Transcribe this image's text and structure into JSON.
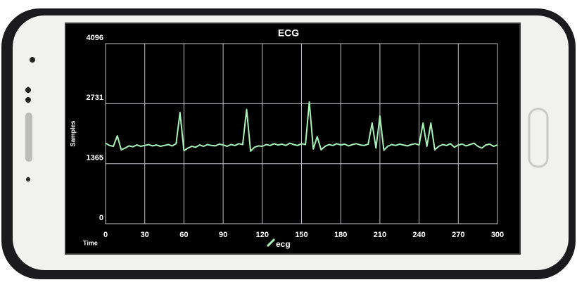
{
  "chart_data": {
    "type": "line",
    "title": "ECG",
    "y_label": "Samples",
    "x_label": "Time",
    "x": [
      0,
      3,
      6,
      9,
      12,
      15,
      18,
      21,
      24,
      27,
      30,
      33,
      36,
      39,
      42,
      45,
      48,
      51,
      54,
      57,
      60,
      63,
      66,
      69,
      72,
      75,
      78,
      81,
      84,
      87,
      90,
      93,
      96,
      99,
      102,
      105,
      108,
      111,
      114,
      117,
      120,
      123,
      126,
      129,
      132,
      135,
      138,
      141,
      144,
      147,
      150,
      153,
      156,
      159,
      162,
      165,
      168,
      171,
      174,
      177,
      180,
      183,
      186,
      189,
      192,
      195,
      198,
      201,
      204,
      207,
      210,
      213,
      216,
      219,
      222,
      225,
      228,
      231,
      234,
      237,
      240,
      243,
      246,
      249,
      252,
      255,
      258,
      261,
      264,
      267,
      270,
      273,
      276,
      279,
      282,
      285,
      288,
      291,
      294,
      297,
      300
    ],
    "series": [
      {
        "name": "ecg",
        "color": "#a6f2b8",
        "values": [
          1830,
          1780,
          1760,
          2000,
          1680,
          1720,
          1770,
          1750,
          1790,
          1760,
          1780,
          1800,
          1770,
          1790,
          1760,
          1780,
          1800,
          1770,
          1820,
          2530,
          1660,
          1720,
          1760,
          1740,
          1790,
          1760,
          1800,
          1780,
          1770,
          1810,
          1790,
          1760,
          1800,
          1780,
          1820,
          1800,
          2600,
          1650,
          1740,
          1770,
          1760,
          1800,
          1780,
          1820,
          1790,
          1810,
          1780,
          1830,
          1800,
          1780,
          1820,
          1800,
          2770,
          1700,
          1980,
          1680,
          1760,
          1800,
          1780,
          1820,
          1790,
          1810,
          1770,
          1800,
          1820,
          1790,
          1780,
          1810,
          2290,
          1720,
          2450,
          1670,
          1760,
          1800,
          1780,
          1810,
          1790,
          1770,
          1800,
          1820,
          1790,
          2290,
          1760,
          2290,
          1680,
          1760,
          1800,
          1780,
          1820,
          1740,
          1790,
          1810,
          1770,
          1800,
          1830,
          1760,
          1720,
          1790,
          1810,
          1760,
          1790
        ]
      }
    ],
    "xlim": [
      0,
      300
    ],
    "xticks": [
      0,
      30,
      60,
      90,
      120,
      150,
      180,
      210,
      240,
      270,
      300
    ],
    "ylim": [
      0,
      4096
    ],
    "yticks": [
      0,
      1365,
      2731,
      4096
    ],
    "grid": true
  }
}
